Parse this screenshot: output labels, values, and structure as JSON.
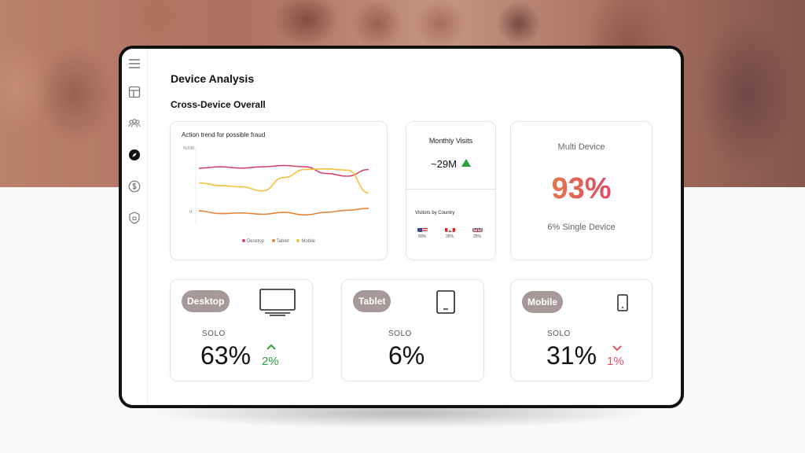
{
  "page": {
    "title": "Device Analysis",
    "section_title": "Cross-Device Overall"
  },
  "sidebar": {
    "items": [
      {
        "icon": "menu-icon"
      },
      {
        "icon": "layout-icon"
      },
      {
        "icon": "users-icon"
      },
      {
        "icon": "compass-icon",
        "active": true
      },
      {
        "icon": "dollar-icon"
      },
      {
        "icon": "shield-icon"
      }
    ]
  },
  "trend_card": {
    "title": "Action trend for possible fraud",
    "y_top_label": "%100",
    "y_mid_label": "0",
    "legend": [
      "Desktop",
      "Tablet",
      "Mobile"
    ],
    "colors": {
      "Desktop": "#d6456b",
      "Tablet": "#e8833a",
      "Mobile": "#f2c23a"
    }
  },
  "chart_data": {
    "type": "line",
    "title": "Action trend for possible fraud",
    "ylabel": "",
    "xlabel": "",
    "series": [
      {
        "name": "Desktop",
        "values": [
          72,
          74,
          72,
          74,
          76,
          74,
          64,
          60,
          70
        ]
      },
      {
        "name": "Tablet",
        "values": [
          8,
          4,
          5,
          3,
          6,
          2,
          6,
          9,
          12
        ]
      },
      {
        "name": "Mobile",
        "values": [
          50,
          46,
          44,
          38,
          58,
          70,
          71,
          69,
          35
        ]
      }
    ]
  },
  "visits_card": {
    "title": "Monthly Visits",
    "value": "~29M",
    "trend": "up",
    "country_title": "Visitors by Country",
    "countries": [
      {
        "flag": "us-flag-icon",
        "pct": "50%"
      },
      {
        "flag": "ca-flag-icon",
        "pct": "25%"
      },
      {
        "flag": "uk-flag-icon",
        "pct": "25%"
      }
    ]
  },
  "multi_card": {
    "title": "Multi Device",
    "value": "93%",
    "sub": "6% Single Device"
  },
  "devices": [
    {
      "label": "Desktop",
      "solo_label": "SOLO",
      "value": "63%",
      "change": "2%",
      "direction": "up",
      "icon": "monitor-icon"
    },
    {
      "label": "Tablet",
      "solo_label": "SOLO",
      "value": "6%",
      "change": "",
      "direction": "none",
      "icon": "tablet-icon"
    },
    {
      "label": "Mobile",
      "solo_label": "SOLO",
      "value": "31%",
      "change": "1%",
      "direction": "down",
      "icon": "phone-icon"
    }
  ],
  "colors": {
    "up": "#2e9e3e",
    "down": "#e05560",
    "pill": "#a7999a"
  }
}
